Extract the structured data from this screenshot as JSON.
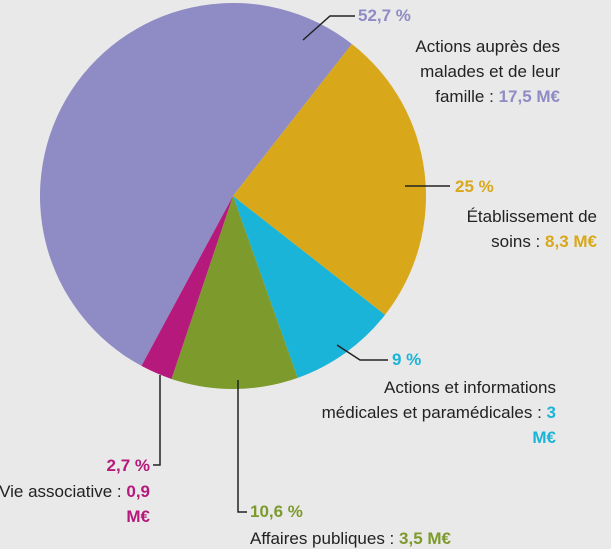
{
  "chart_data": {
    "type": "pie",
    "categories": [
      "Actions auprès des malades et de leur famille :",
      "Établissement de soins :",
      "Actions et informations médicales et paramédicales :",
      "Vie associative :",
      "Affaires publiques :"
    ],
    "values": [
      52.7,
      25,
      9,
      2.7,
      10.6
    ],
    "value_labels": [
      "52,7 %",
      "25 %",
      "9 %",
      "2,7 %",
      "10,6 %"
    ],
    "amounts": [
      "17,5 M€",
      "8,3 M€",
      "3 M€",
      "0,9 M€",
      "3,5 M€"
    ],
    "colors": [
      "#8f8bc4",
      "#d9a81a",
      "#1ab4d8",
      "#b5197b",
      "#7d9a2c"
    ]
  }
}
